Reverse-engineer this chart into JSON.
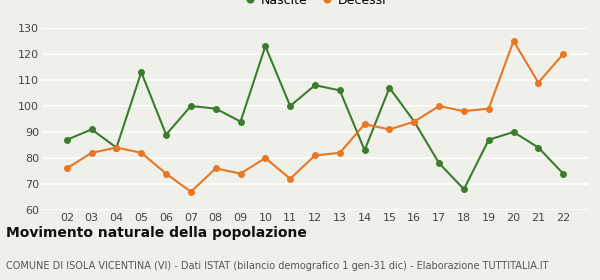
{
  "years": [
    "02",
    "03",
    "04",
    "05",
    "06",
    "07",
    "08",
    "09",
    "10",
    "11",
    "12",
    "13",
    "14",
    "15",
    "16",
    "17",
    "18",
    "19",
    "20",
    "21",
    "22"
  ],
  "nascite": [
    87,
    91,
    84,
    113,
    89,
    100,
    99,
    94,
    123,
    100,
    108,
    106,
    83,
    107,
    94,
    78,
    68,
    87,
    90,
    84,
    74
  ],
  "decessi": [
    76,
    82,
    84,
    82,
    74,
    67,
    76,
    74,
    80,
    72,
    81,
    82,
    93,
    91,
    94,
    100,
    98,
    99,
    125,
    109,
    120
  ],
  "nascite_color": "#3a7d2c",
  "decessi_color": "#e87722",
  "background_color": "#f0f0eb",
  "grid_color": "#ffffff",
  "ylim": [
    60,
    130
  ],
  "yticks": [
    60,
    70,
    80,
    90,
    100,
    110,
    120,
    130
  ],
  "title": "Movimento naturale della popolazione",
  "subtitle": "COMUNE DI ISOLA VICENTINA (VI) - Dati ISTAT (bilancio demografico 1 gen-31 dic) - Elaborazione TUTTITALIA.IT",
  "legend_nascite": "Nascite",
  "legend_decessi": "Decessi",
  "title_fontsize": 10,
  "subtitle_fontsize": 7,
  "axis_fontsize": 8,
  "marker_size": 4,
  "line_width": 1.5
}
